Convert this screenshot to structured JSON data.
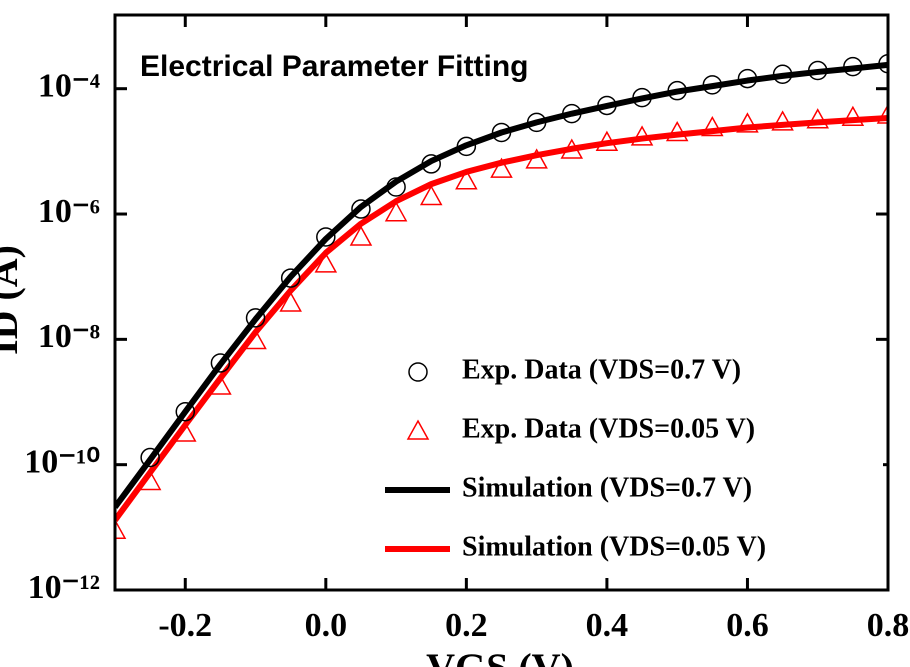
{
  "chart_data": {
    "type": "line",
    "title": "Electrical Parameter Fitting",
    "x_label": "VGS (V)",
    "y_label": "ID (A)",
    "log_y": true,
    "xlim": [
      -0.3,
      0.8
    ],
    "xticks": [
      -0.2,
      {
        "value": 0,
        "label": "0.0"
      },
      0.2,
      0.4,
      0.6,
      0.8
    ],
    "ylim": [
      1e-12,
      0.0015
    ],
    "yticks": [
      {
        "value": 1e-12,
        "label": "10⁻¹²"
      },
      {
        "value": 1e-10,
        "label": "10⁻¹⁰"
      },
      {
        "value": 1e-08,
        "label": "10⁻⁸"
      },
      {
        "value": 1e-06,
        "label": "10⁻⁶"
      },
      {
        "value": 0.0001,
        "label": "10⁻⁴"
      }
    ],
    "x": [
      -0.3,
      -0.25,
      -0.2,
      -0.15,
      -0.1,
      -0.05,
      0,
      0.05,
      0.1,
      0.15,
      0.2,
      0.25,
      0.3,
      0.35,
      0.4,
      0.45,
      0.5,
      0.55,
      0.6,
      0.65,
      0.7,
      0.75,
      0.8
    ],
    "legend": "lower right",
    "series": [
      {
        "name": "Exp. Data (VDS=0.7 V)",
        "color": "#000000",
        "marker": "circle",
        "line": false,
        "values": [
          null,
          1.3e-10,
          7e-10,
          4.2e-09,
          2.2e-08,
          9.5e-08,
          4.3e-07,
          1.2e-06,
          2.7e-06,
          6.3e-06,
          1.2e-05,
          2e-05,
          2.9e-05,
          4e-05,
          5.4e-05,
          7.2e-05,
          9.3e-05,
          0.000115,
          0.000145,
          0.00017,
          0.000195,
          0.000225,
          0.00025
        ]
      },
      {
        "name": "Exp. Data (VDS=0.05 V)",
        "color": "#ff0000",
        "marker": "triangle",
        "line": false,
        "values": [
          9e-12,
          5.4e-11,
          3.2e-10,
          1.8e-09,
          9.6e-09,
          3.8e-08,
          1.6e-07,
          4.3e-07,
          1.05e-06,
          1.9e-06,
          3.4e-06,
          5.2e-06,
          7.3e-06,
          1.05e-05,
          1.4e-05,
          1.7e-05,
          2e-05,
          2.4e-05,
          2.75e-05,
          2.95e-05,
          3.2e-05,
          3.5e-05,
          3.8e-05
        ]
      },
      {
        "name": "Simulation (VDS=0.7 V)",
        "color": "#000000",
        "marker": null,
        "line": true,
        "values": [
          2.1e-11,
          1.2e-10,
          7e-10,
          4e-09,
          2.1e-08,
          1e-07,
          4e-07,
          1.3e-06,
          3.3e-06,
          7e-06,
          1.25e-05,
          2e-05,
          2.9e-05,
          4e-05,
          5.3e-05,
          7e-05,
          9e-05,
          0.00011,
          0.000135,
          0.00016,
          0.000185,
          0.00021,
          0.00024
        ]
      },
      {
        "name": "Simulation (VDS=0.05 V)",
        "color": "#ff0000",
        "marker": null,
        "line": true,
        "values": [
          1.3e-11,
          7.5e-11,
          4.3e-10,
          2.4e-09,
          1.3e-08,
          6e-08,
          2.4e-07,
          7e-07,
          1.6e-06,
          3e-06,
          4.7e-06,
          6.6e-06,
          8.7e-06,
          1.1e-05,
          1.35e-05,
          1.6e-05,
          1.85e-05,
          2.1e-05,
          2.4e-05,
          2.65e-05,
          2.9e-05,
          3.15e-05,
          3.4e-05
        ]
      }
    ]
  }
}
